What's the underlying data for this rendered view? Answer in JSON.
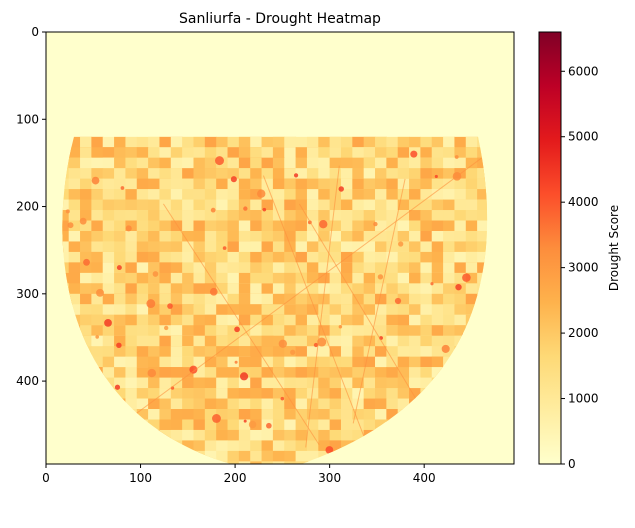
{
  "chart_data": {
    "type": "heatmap",
    "title": "Sanliurfa - Drought Heatmap",
    "xlabel": "",
    "ylabel": "",
    "x_range": [
      0,
      495
    ],
    "y_range": [
      0,
      495
    ],
    "y_inverted": true,
    "x_ticks": [
      0,
      100,
      200,
      300,
      400
    ],
    "y_ticks": [
      0,
      100,
      200,
      300,
      400
    ],
    "grid": false,
    "colormap": "YlOrRd",
    "colormap_stops": [
      "#ffffcc",
      "#ffeda0",
      "#fed976",
      "#feb24c",
      "#fd8d3c",
      "#fc4e2a",
      "#e31a1c",
      "#bd0026",
      "#800026"
    ],
    "colorbar": {
      "label": "Drought Score",
      "range": [
        0,
        6600
      ],
      "ticks": [
        0,
        1000,
        2000,
        3000,
        4000,
        5000,
        6000
      ]
    },
    "region": {
      "shape": "semicircle-bottom",
      "top_row": 120,
      "bottom_row": 495,
      "typical_value_range": [
        500,
        2800
      ],
      "hotspot_value_range": [
        3000,
        4500
      ]
    }
  }
}
